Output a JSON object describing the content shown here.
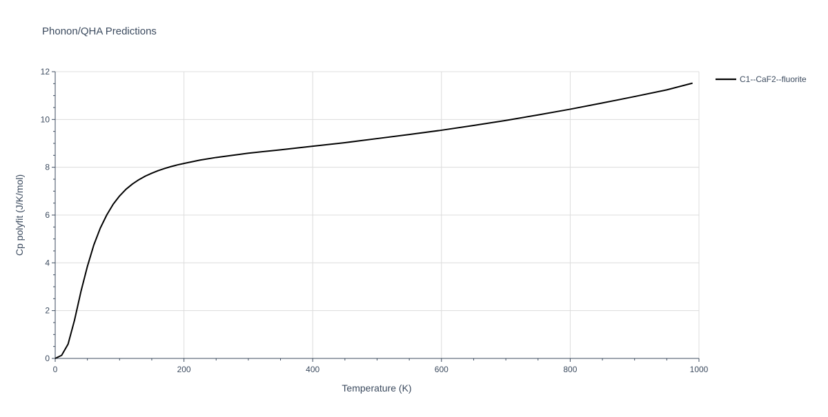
{
  "chart_data": {
    "type": "line",
    "title": "Phonon/QHA Predictions",
    "xlabel": "Temperature (K)",
    "ylabel": "Cp polyfit (J/K/mol)",
    "xlim": [
      0,
      1000
    ],
    "ylim": [
      0,
      12
    ],
    "x_ticks": [
      0,
      200,
      400,
      600,
      800,
      1000
    ],
    "x_tick_labels": [
      "0",
      "200",
      "400",
      "600",
      "800",
      "1000"
    ],
    "y_ticks": [
      0,
      2,
      4,
      6,
      8,
      10,
      12
    ],
    "y_tick_labels": [
      "0",
      "2",
      "4",
      "6",
      "8",
      "10",
      "12"
    ],
    "grid": true,
    "legend_position": "top-right",
    "series": [
      {
        "name": "C1--CaF2--fluorite",
        "color": "#000000",
        "x": [
          0,
          10,
          20,
          30,
          40,
          50,
          60,
          70,
          80,
          90,
          100,
          110,
          120,
          130,
          140,
          150,
          160,
          170,
          180,
          190,
          200,
          225,
          250,
          275,
          300,
          350,
          400,
          450,
          500,
          550,
          600,
          650,
          700,
          750,
          800,
          850,
          900,
          950,
          990
        ],
        "y": [
          0,
          0.13,
          0.6,
          1.6,
          2.8,
          3.85,
          4.75,
          5.45,
          6.0,
          6.45,
          6.8,
          7.08,
          7.3,
          7.48,
          7.63,
          7.75,
          7.86,
          7.95,
          8.03,
          8.1,
          8.16,
          8.3,
          8.41,
          8.5,
          8.59,
          8.73,
          8.88,
          9.03,
          9.2,
          9.37,
          9.55,
          9.75,
          9.96,
          10.19,
          10.43,
          10.69,
          10.96,
          11.24,
          11.52
        ]
      }
    ]
  }
}
